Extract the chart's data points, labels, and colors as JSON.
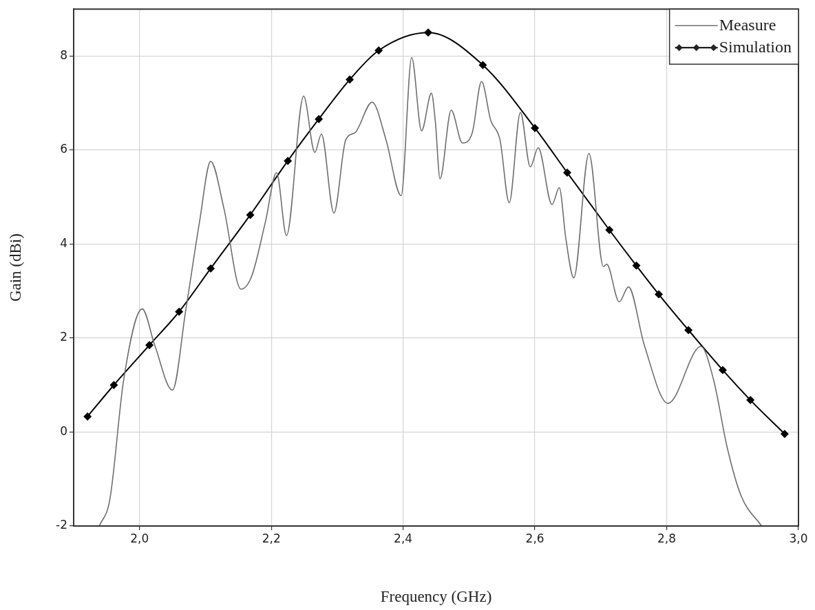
{
  "chart_data": {
    "type": "line",
    "xlabel": "Frequency (GHz)",
    "ylabel": "Gain (dBi)",
    "xlim": [
      1.9,
      3.0
    ],
    "xticks": [
      {
        "value": 2.0,
        "label": "2,0"
      },
      {
        "value": 2.2,
        "label": "2,2"
      },
      {
        "value": 2.4,
        "label": "2,4"
      },
      {
        "value": 2.6,
        "label": "2,6"
      },
      {
        "value": 2.8,
        "label": "2,8"
      },
      {
        "value": 3.0,
        "label": "3,0"
      }
    ],
    "ylim": [
      -2,
      9
    ],
    "yticks": [
      -2,
      0,
      2,
      4,
      6,
      8
    ],
    "grid": true,
    "legend": "top right",
    "line_style": "solid",
    "series": [
      {
        "name": "Measure",
        "color": "#6e6e6e",
        "marker": "none",
        "x": [
          1.939,
          1.955,
          1.976,
          2.004,
          2.023,
          2.05,
          2.07,
          2.091,
          2.108,
          2.128,
          2.154,
          2.17,
          2.191,
          2.208,
          2.223,
          2.249,
          2.266,
          2.276,
          2.295,
          2.313,
          2.327,
          2.353,
          2.374,
          2.397,
          2.413,
          2.428,
          2.443,
          2.449,
          2.456,
          2.473,
          2.49,
          2.505,
          2.519,
          2.533,
          2.547,
          2.561,
          2.578,
          2.593,
          2.605,
          2.626,
          2.637,
          2.647,
          2.659,
          2.682,
          2.704,
          2.709,
          2.728,
          2.742,
          2.766,
          2.802,
          2.852,
          2.871,
          2.892,
          2.913,
          2.944
        ],
        "values": [
          -2.0,
          -1.43,
          1.12,
          2.62,
          1.85,
          0.89,
          2.58,
          4.47,
          5.76,
          4.76,
          3.04,
          3.31,
          4.47,
          5.52,
          4.18,
          7.15,
          5.95,
          6.34,
          4.66,
          6.22,
          6.37,
          7.02,
          6.22,
          5.03,
          7.97,
          6.41,
          7.21,
          6.59,
          5.39,
          6.85,
          6.15,
          6.37,
          7.46,
          6.63,
          6.22,
          4.88,
          6.8,
          5.64,
          6.05,
          4.84,
          5.2,
          4.11,
          3.28,
          5.93,
          3.52,
          3.57,
          2.77,
          3.09,
          1.85,
          0.61,
          1.82,
          1.12,
          -0.34,
          -1.36,
          -2.0
        ]
      },
      {
        "name": "Simulation",
        "color": "#000000",
        "marker": "diamond",
        "x": [
          1.921,
          1.961,
          2.015,
          2.06,
          2.108,
          2.168,
          2.225,
          2.272,
          2.319,
          2.363,
          2.438,
          2.521,
          2.6,
          2.649,
          2.713,
          2.754,
          2.788,
          2.833,
          2.885,
          2.927,
          2.979
        ],
        "values": [
          0.33,
          1.0,
          1.85,
          2.56,
          3.48,
          4.62,
          5.77,
          6.66,
          7.5,
          8.12,
          8.5,
          7.81,
          6.47,
          5.52,
          4.3,
          3.54,
          2.93,
          2.17,
          1.32,
          0.68,
          -0.04
        ]
      }
    ]
  }
}
